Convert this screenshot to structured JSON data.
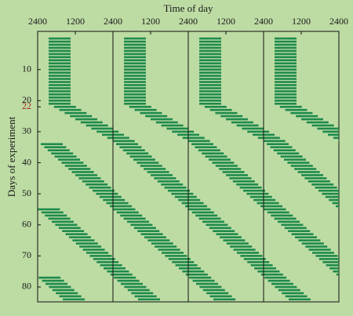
{
  "chart_data": {
    "type": "actogram",
    "title": "Time of day",
    "y_label": "Days of experiment",
    "xlim": [
      0,
      96
    ],
    "xticks": [
      {
        "value": 0,
        "label": "2400"
      },
      {
        "value": 12,
        "label": "1200"
      },
      {
        "value": 24,
        "label": "2400"
      },
      {
        "value": 36,
        "label": "1200"
      },
      {
        "value": 48,
        "label": "2400"
      },
      {
        "value": 60,
        "label": "1200"
      },
      {
        "value": 72,
        "label": "2400"
      },
      {
        "value": 84,
        "label": "1200"
      },
      {
        "value": 96,
        "label": "2400"
      }
    ],
    "ylim": [
      -2.3,
      84.8
    ],
    "y_inverted": true,
    "yticks": [
      10,
      20,
      {
        "value": 22,
        "label": "22",
        "color": "#a8281c"
      },
      30,
      40,
      50,
      60,
      70,
      80
    ],
    "color": "#1e8a4c",
    "days": [
      0,
      1,
      2,
      3,
      4,
      5,
      6,
      7,
      8,
      9,
      10,
      11,
      12,
      13,
      14,
      15,
      16,
      17,
      18,
      19,
      20,
      21,
      22,
      23,
      24,
      25,
      26,
      27,
      28,
      29,
      30,
      31,
      32,
      33,
      34,
      35,
      36,
      37,
      38,
      39,
      40,
      41,
      42,
      43,
      44,
      45,
      46,
      47,
      48,
      49,
      50,
      51,
      52,
      53,
      54,
      55,
      56,
      57,
      58,
      59,
      60,
      61,
      62,
      63,
      64,
      65,
      66,
      67,
      68,
      69,
      70,
      71,
      72,
      73,
      74,
      75,
      76,
      77,
      78,
      79,
      80,
      81,
      82,
      83,
      84
    ],
    "onset": [
      3.5,
      3.5,
      3.5,
      3.5,
      3.5,
      3.5,
      3.5,
      3.5,
      3.5,
      3.5,
      3.5,
      3.5,
      3.5,
      3.5,
      3.5,
      3.5,
      3.5,
      3.5,
      3.5,
      3.5,
      3.5,
      3.5,
      5.2,
      6.9,
      8.6,
      10.3,
      12,
      13.7,
      15.4,
      17.1,
      18.8,
      20.5,
      22.2,
      23.9,
      1,
      2.1,
      3.2,
      4.3,
      5.4,
      6.5,
      7.6,
      8.7,
      9.8,
      10.9,
      12,
      13.1,
      14.2,
      15.3,
      16.4,
      17.5,
      18.6,
      19.7,
      20.8,
      21.9,
      23,
      0.1,
      1.2,
      2.3,
      3.4,
      4.5,
      5.6,
      6.7,
      7.8,
      8.9,
      10,
      11.1,
      12.2,
      13.3,
      14.4,
      15.5,
      16.6,
      17.7,
      18.8,
      19.9,
      21,
      22.1,
      23.2,
      0.3,
      1.4,
      2.5,
      3.6,
      4.7,
      5.8,
      6.9,
      8
    ],
    "offset": [
      10.5,
      10.5,
      10.5,
      10.5,
      10.5,
      10.5,
      10.5,
      10.5,
      10.5,
      10.5,
      10.5,
      10.5,
      10.5,
      10.5,
      10.5,
      10.5,
      10.5,
      10.5,
      10.5,
      10.5,
      10.5,
      10.5,
      12.2,
      13.9,
      15.6,
      17.3,
      19,
      20.7,
      22.4,
      24.1,
      25.8,
      27.5,
      29.2,
      30.9,
      8,
      9.1,
      10.2,
      11.3,
      12.4,
      13.5,
      14.6,
      15.7,
      16.8,
      17.9,
      19,
      20.1,
      21.2,
      22.3,
      23.4,
      24.5,
      25.6,
      26.7,
      27.8,
      28.9,
      30,
      7.1,
      8.2,
      9.3,
      10.4,
      11.5,
      12.6,
      13.7,
      14.8,
      15.9,
      17,
      18.1,
      19.2,
      20.3,
      21.4,
      22.5,
      23.6,
      24.7,
      25.8,
      26.9,
      28,
      29.1,
      30.2,
      7.3,
      8.4,
      9.5,
      10.6,
      11.7,
      12.8,
      13.9,
      15
    ]
  }
}
